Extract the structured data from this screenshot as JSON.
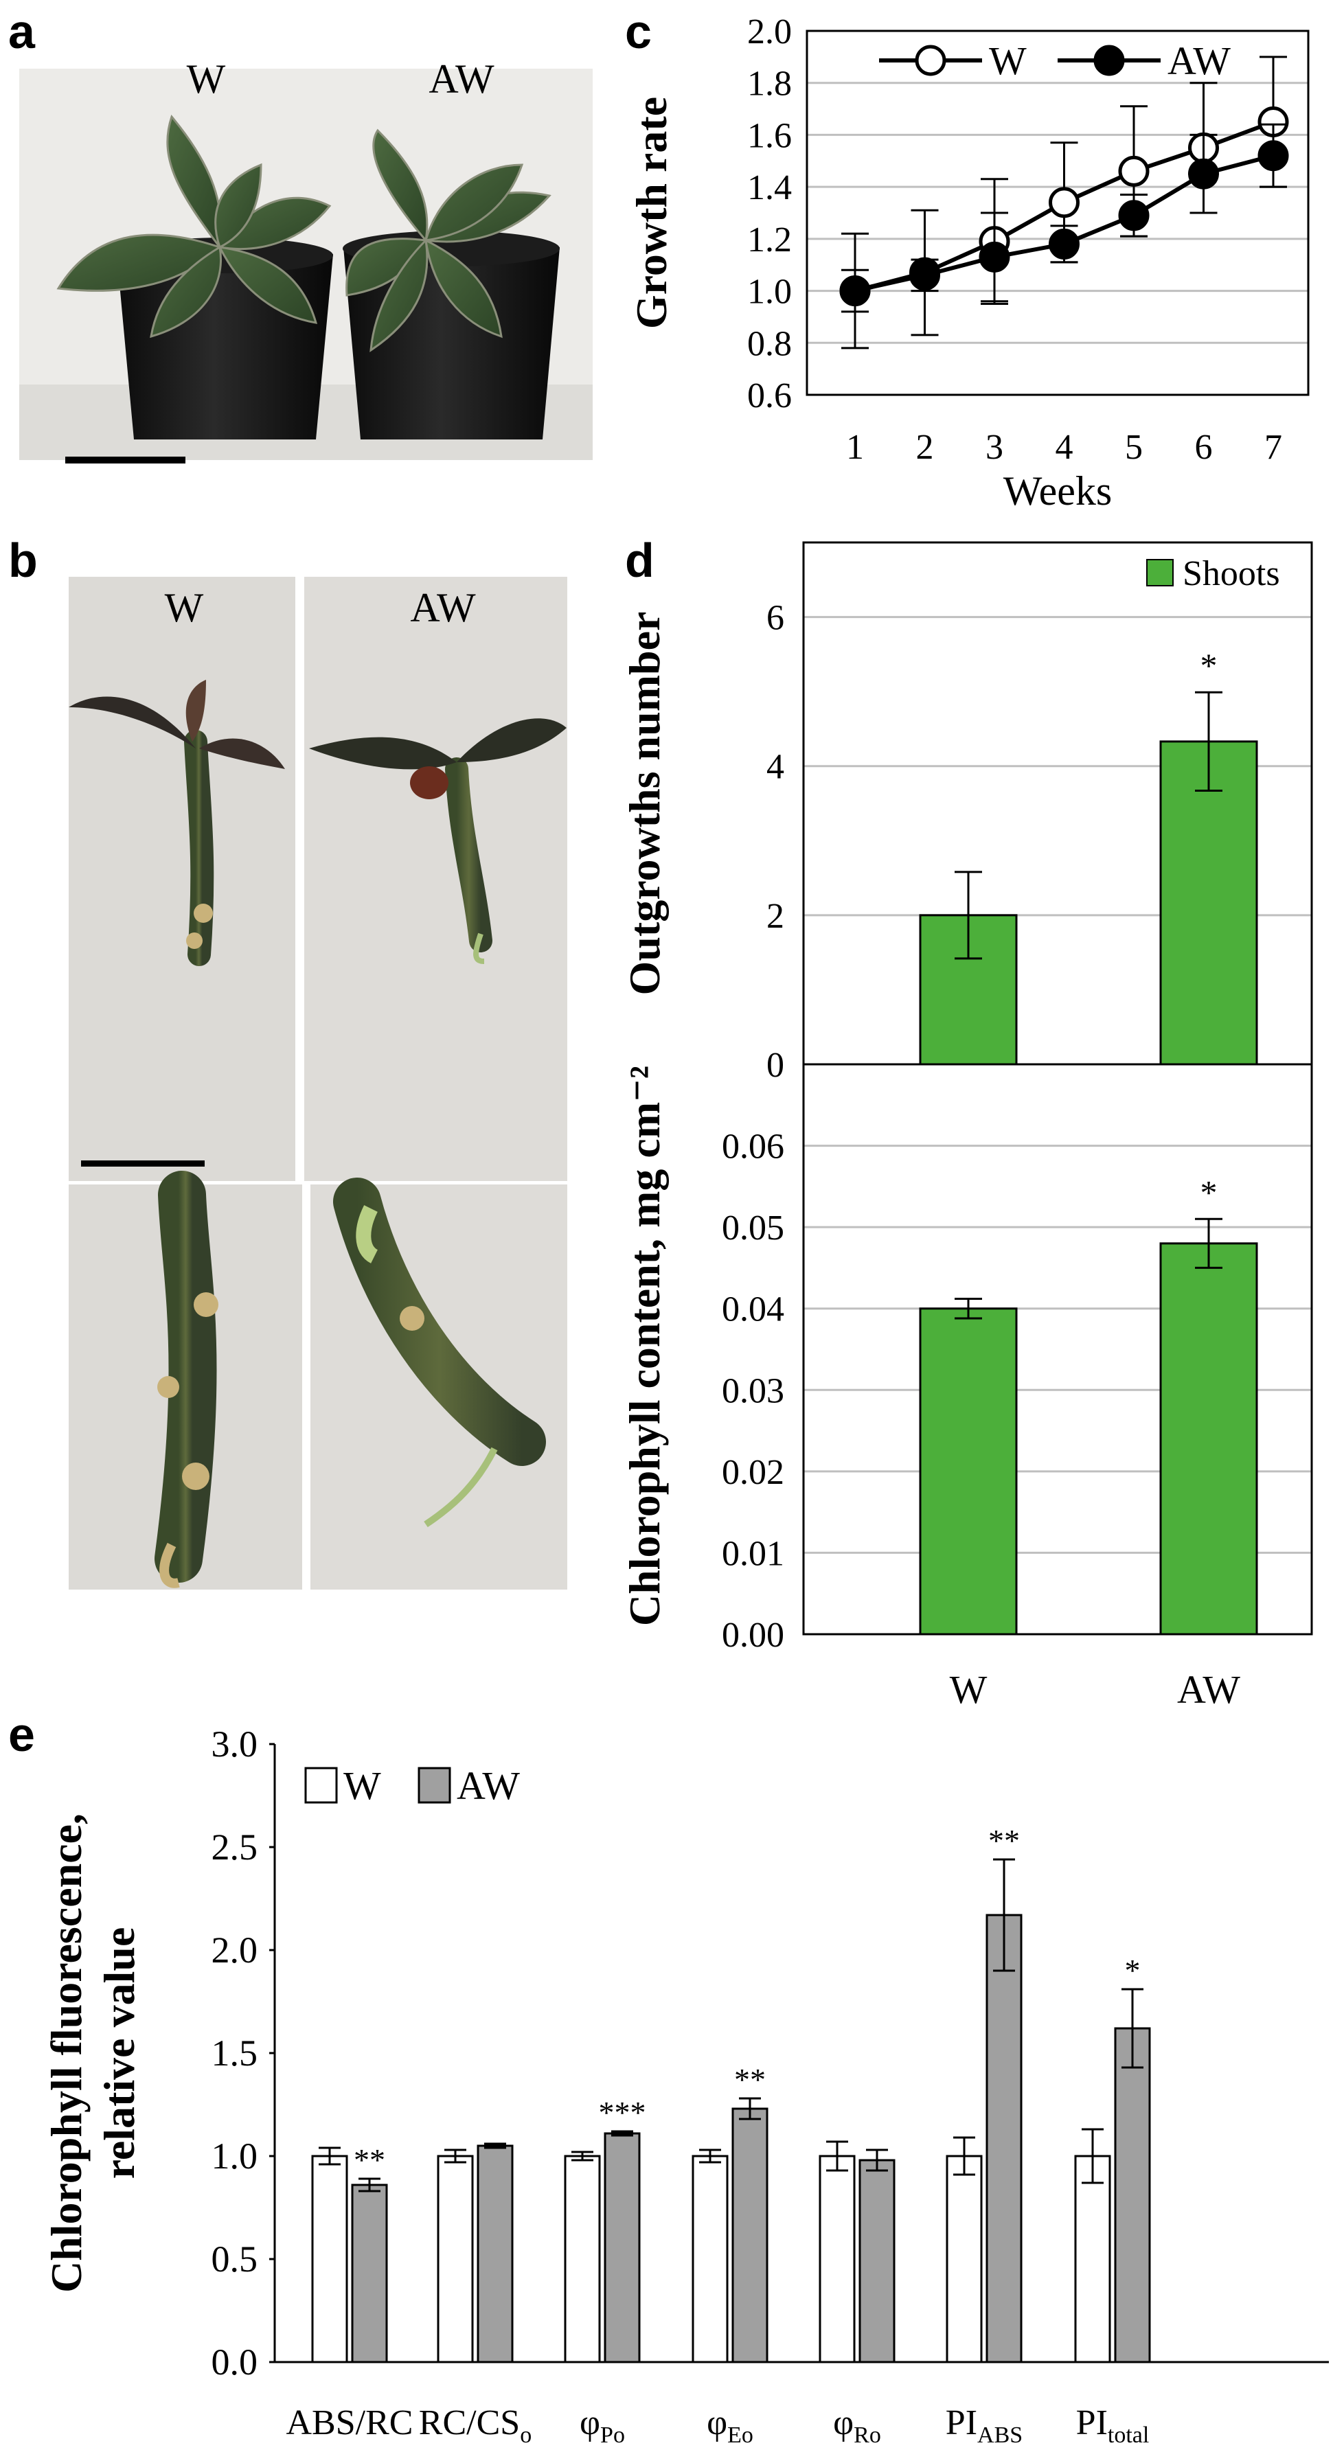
{
  "panel_labels": {
    "a": "a",
    "b": "b",
    "c": "c",
    "d": "d",
    "e": "e"
  },
  "photos": {
    "a": {
      "left_label": "W",
      "right_label": "AW"
    },
    "b": {
      "left_label": "W",
      "right_label": "AW"
    }
  },
  "colors": {
    "green_bar": "#4caf3a",
    "gray_bar": "#a0a0a0",
    "white_bar": "#ffffff",
    "grid": "#bfbfbf",
    "pot": "#151515",
    "leaf": "#3e5a34",
    "photo_bg_a": "#ececea",
    "photo_bg_b": "#dcdad6"
  },
  "chart_data": [
    {
      "id": "c",
      "type": "line",
      "title": "",
      "xlabel": "Weeks",
      "ylabel": "Growth rate",
      "x": [
        1,
        2,
        3,
        4,
        5,
        6,
        7
      ],
      "ylim": [
        0.6,
        2.0
      ],
      "yticks": [
        "0.6",
        "0.8",
        "1.0",
        "1.2",
        "1.4",
        "1.6",
        "1.8",
        "2.0"
      ],
      "grid": true,
      "legend": "top",
      "series": [
        {
          "name": "W",
          "marker": "open-circle",
          "values": [
            1.0,
            1.07,
            1.19,
            1.34,
            1.46,
            1.55,
            1.65
          ],
          "errors": [
            0.22,
            0.24,
            0.24,
            0.23,
            0.25,
            0.25,
            0.25
          ]
        },
        {
          "name": "AW",
          "marker": "filled-circle",
          "values": [
            1.0,
            1.06,
            1.13,
            1.18,
            1.29,
            1.45,
            1.52
          ],
          "errors": [
            0.08,
            0.06,
            0.17,
            0.07,
            0.08,
            0.15,
            0.12
          ]
        }
      ]
    },
    {
      "id": "d-top",
      "type": "bar",
      "title": "",
      "ylabel": "Outgrowths number",
      "categories": [
        "W",
        "AW"
      ],
      "ylim": [
        0,
        7
      ],
      "yticks": [
        "0",
        "2",
        "4",
        "6"
      ],
      "grid": true,
      "legend": "top-right",
      "series": [
        {
          "name": "Shoots",
          "values": [
            2.0,
            4.33
          ],
          "errors": [
            0.58,
            0.66
          ]
        }
      ],
      "annotations": [
        "",
        "*"
      ]
    },
    {
      "id": "d-bottom",
      "type": "bar",
      "title": "",
      "ylabel": "Chlorophyll content, mg cm⁻²",
      "xlabel": "",
      "categories": [
        "W",
        "AW"
      ],
      "ylim": [
        0,
        0.07
      ],
      "yticks": [
        "0.00",
        "0.01",
        "0.02",
        "0.03",
        "0.04",
        "0.05",
        "0.06"
      ],
      "grid": true,
      "series": [
        {
          "name": "",
          "values": [
            0.04,
            0.048
          ],
          "errors": [
            0.0012,
            0.003
          ]
        }
      ],
      "annotations": [
        "",
        "*"
      ]
    },
    {
      "id": "e",
      "type": "bar",
      "title": "",
      "ylabel_line1": "Chlorophyll fluorescence,",
      "ylabel_line2": "relative value",
      "categories": [
        {
          "base": "ABS/RC",
          "sub": ""
        },
        {
          "base": "RC/CS",
          "sub": "o"
        },
        {
          "base": "φ",
          "sub": "Po"
        },
        {
          "base": "φ",
          "sub": "Eo"
        },
        {
          "base": "φ",
          "sub": "Ro"
        },
        {
          "base": "PI",
          "sub": "ABS"
        },
        {
          "base": "PI",
          "sub": "total"
        }
      ],
      "ylim": [
        0,
        3.0
      ],
      "yticks": [
        "0.0",
        "0.5",
        "1.0",
        "1.5",
        "2.0",
        "2.5",
        "3.0"
      ],
      "grid": false,
      "legend": "top-left",
      "series": [
        {
          "name": "W",
          "values": [
            1.0,
            1.0,
            1.0,
            1.0,
            1.0,
            1.0,
            1.0
          ],
          "errors": [
            0.04,
            0.03,
            0.02,
            0.03,
            0.07,
            0.09,
            0.13
          ]
        },
        {
          "name": "AW",
          "values": [
            0.86,
            1.05,
            1.11,
            1.23,
            0.98,
            2.17,
            1.62
          ],
          "errors": [
            0.03,
            0.01,
            0.01,
            0.05,
            0.05,
            0.27,
            0.19
          ]
        }
      ],
      "annotations": [
        "**",
        "",
        "***",
        "**",
        "",
        "**",
        "*"
      ]
    }
  ]
}
